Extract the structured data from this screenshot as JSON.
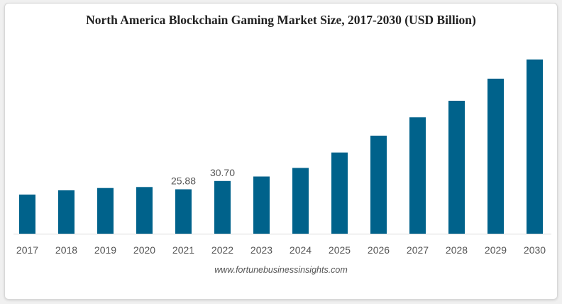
{
  "chart_data": {
    "type": "bar",
    "title": "North America Blockchain Gaming Market Size, 2017-2030 (USD Billion)",
    "xlabel": "",
    "ylabel": "",
    "categories": [
      "2017",
      "2018",
      "2019",
      "2020",
      "2021",
      "2022",
      "2023",
      "2024",
      "2025",
      "2026",
      "2027",
      "2028",
      "2029",
      "2030"
    ],
    "values": [
      22.8,
      25.3,
      26.6,
      27.2,
      25.88,
      30.7,
      33.3,
      38.3,
      47.3,
      57.1,
      67.8,
      77.4,
      90.3,
      101.5
    ],
    "data_labels": [
      null,
      null,
      null,
      null,
      "25.88",
      "30.70",
      null,
      null,
      null,
      null,
      null,
      null,
      null,
      null
    ],
    "ylim": [
      0,
      120
    ],
    "grid": false,
    "legend": "none",
    "bar_color": "#00628b"
  },
  "source": "www.fortunebusinessinsights.com"
}
